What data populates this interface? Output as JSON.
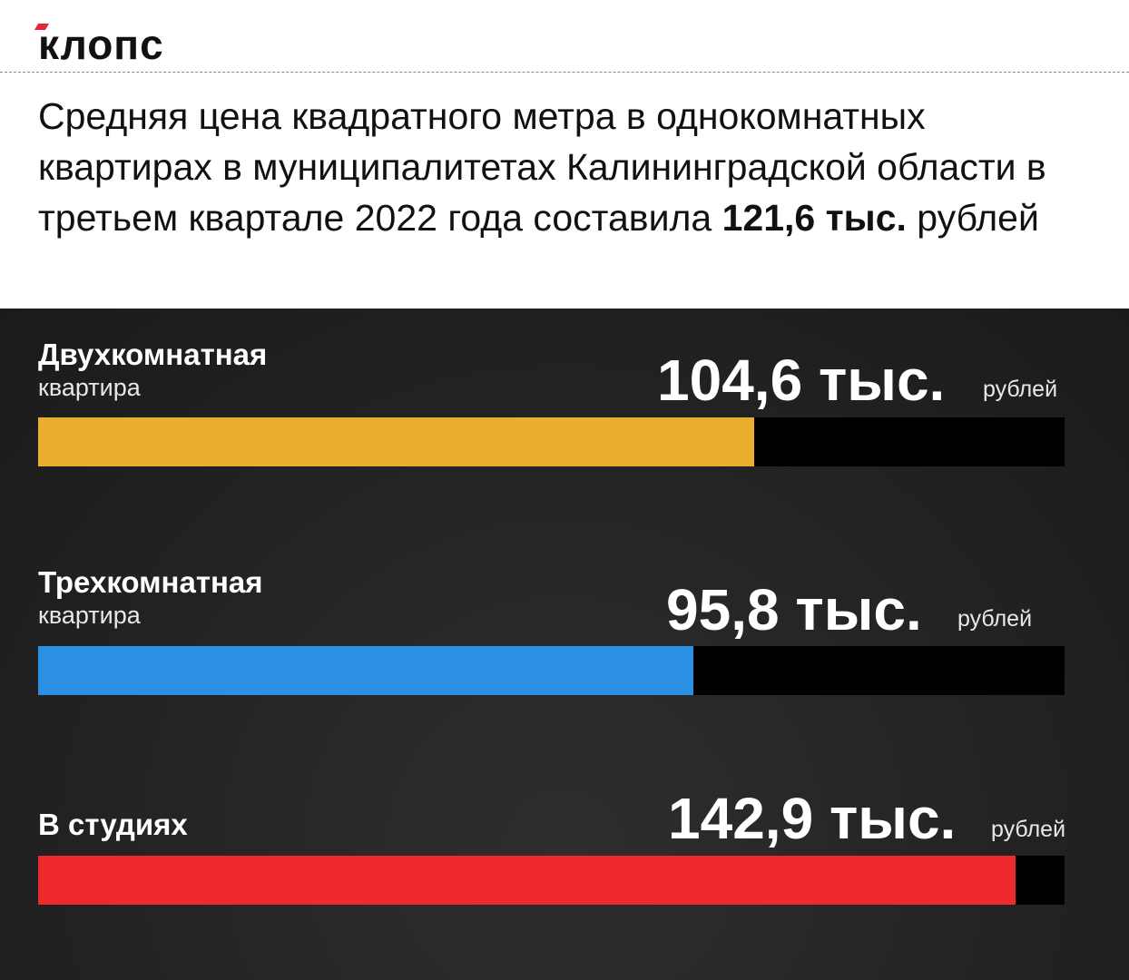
{
  "logo": "клопс",
  "title": {
    "pre": "Средняя цена квадратного метра в однокомнатных квартирах в муниципалитетах Калининградской области в третьем квартале 2022 года составила ",
    "bold": "121,6 тыс.",
    "post": " рублей"
  },
  "chart_data": {
    "type": "bar",
    "orientation": "horizontal",
    "xlim": [
      0,
      150
    ],
    "unit": "рублей",
    "categories": [
      {
        "label": "Двухкомнатная",
        "sub": "квартира",
        "value": 104.6,
        "value_label": "104,6 тыс.",
        "color": "#e9ae2d"
      },
      {
        "label": "Трехкомнатная",
        "sub": "квартира",
        "value": 95.8,
        "value_label": "95,8 тыс.",
        "color": "#2b8fe3"
      },
      {
        "label": "В студиях",
        "sub": "",
        "value": 142.9,
        "value_label": "142,9 тыс.",
        "color": "#ee2a2c"
      }
    ]
  }
}
